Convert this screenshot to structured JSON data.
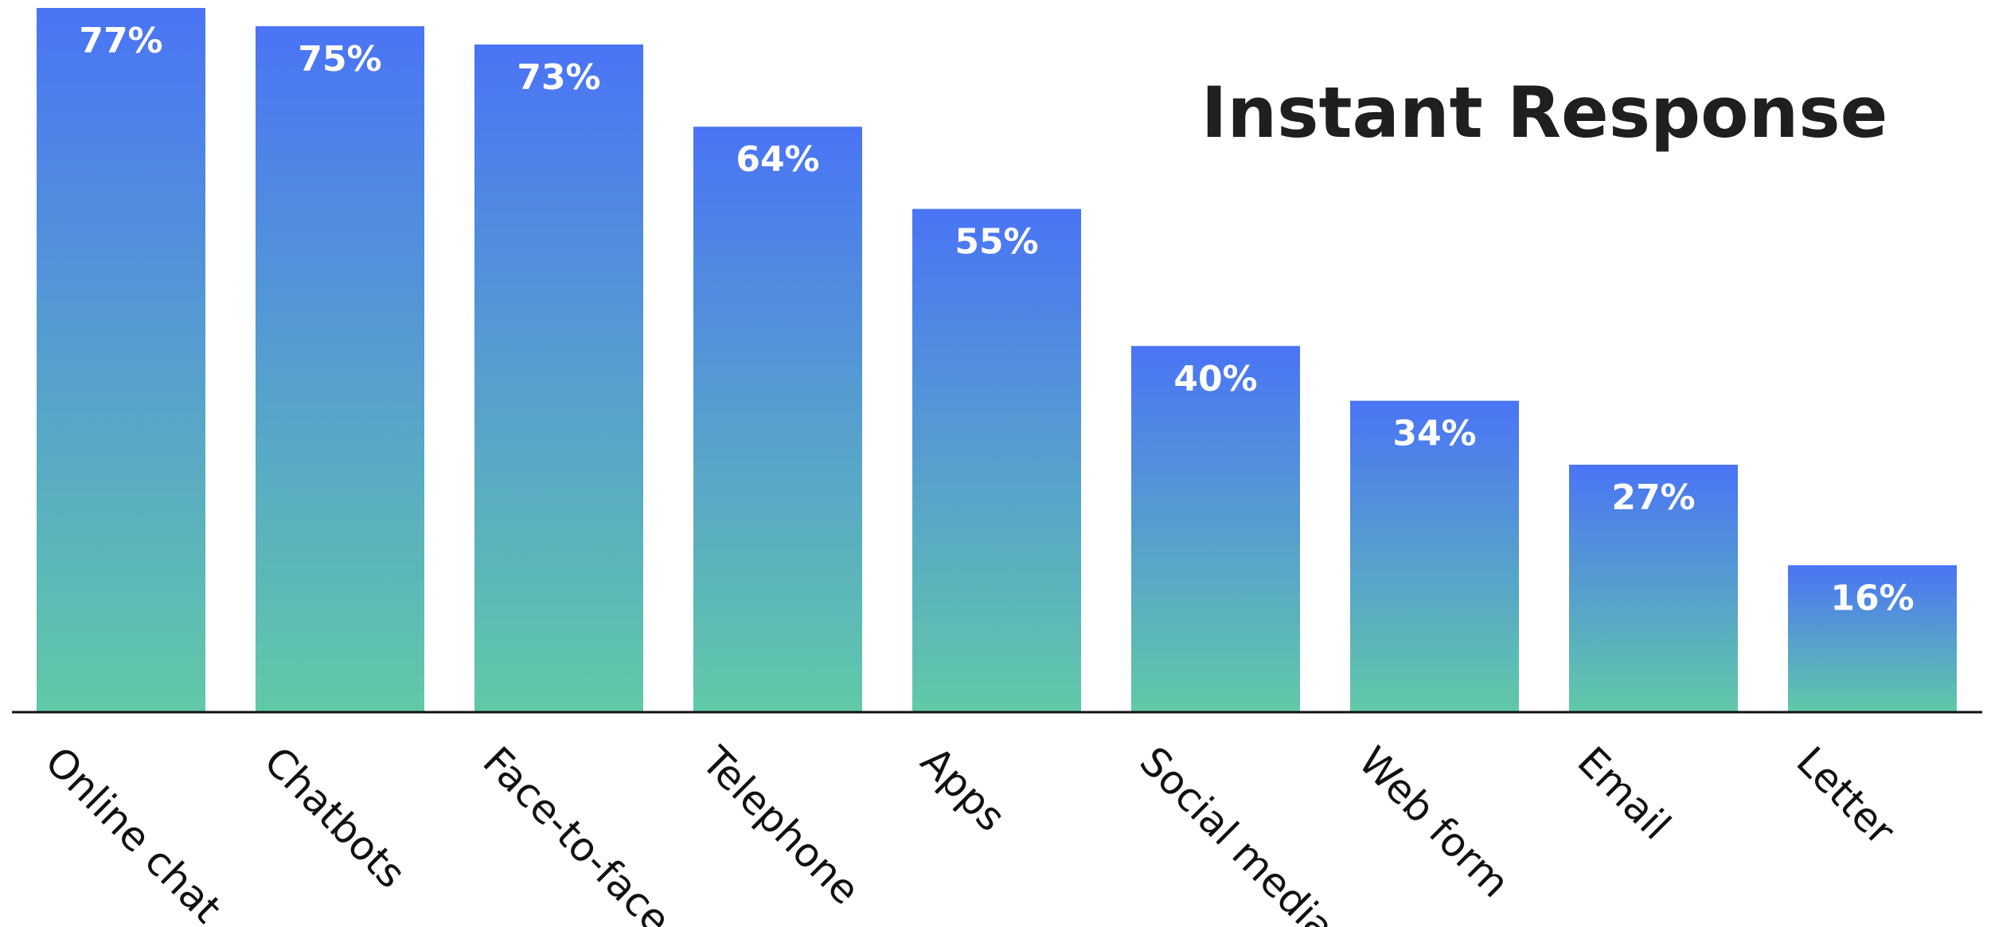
{
  "chart_data": {
    "type": "bar",
    "title": "Instant Response",
    "categories": [
      "Online chat",
      "Chatbots",
      "Face-to-face",
      "Telephone",
      "Apps",
      "Social media",
      "Web form",
      "Email",
      "Letter"
    ],
    "values": [
      77,
      75,
      73,
      64,
      55,
      40,
      34,
      27,
      16
    ],
    "value_labels": [
      "77%",
      "75%",
      "73%",
      "64%",
      "55%",
      "40%",
      "34%",
      "27%",
      "16%"
    ],
    "unit": "%",
    "ylim": [
      0,
      77
    ],
    "grid": false,
    "legend": "none",
    "colors": {
      "bar_top": "#4a74f5",
      "bar_bottom": "#61c9a8",
      "axis": "#111111",
      "label_text": "#ffffff",
      "title_text": "#1f1f1f"
    }
  }
}
